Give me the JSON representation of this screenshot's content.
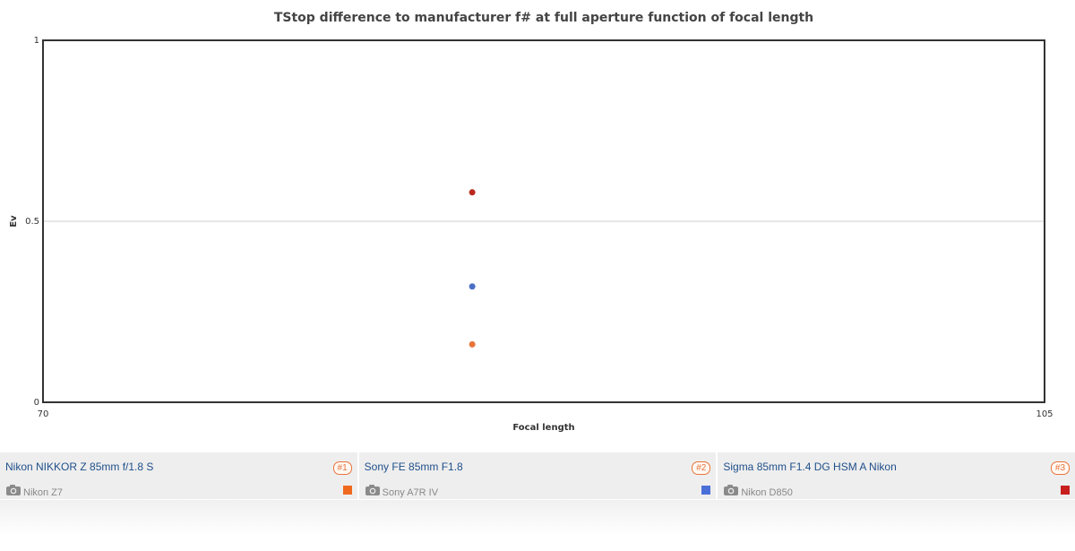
{
  "chart_data": {
    "type": "scatter",
    "title": "TStop difference to manufacturer f# at full aperture function of focal length",
    "xlabel": "Focal length",
    "ylabel": "Ev",
    "xlim": [
      70,
      105
    ],
    "ylim": [
      0,
      1
    ],
    "x_ticks": [
      "70",
      "105"
    ],
    "y_ticks": [
      "0",
      "0.5",
      "1"
    ],
    "grid": "horizontal",
    "series": [
      {
        "x": [
          85
        ],
        "y": [
          0.16
        ],
        "color": "#e8743b"
      },
      {
        "x": [
          85
        ],
        "y": [
          0.32
        ],
        "color": "#4a6fc4"
      },
      {
        "x": [
          85
        ],
        "y": [
          0.58
        ],
        "color": "#b82a1e"
      }
    ]
  },
  "legend": {
    "items": [
      {
        "lens": "Nikon NIKKOR Z 85mm f/1.8 S",
        "rank": "#1",
        "camera": "Nikon Z7",
        "color": "#ef6a1f",
        "icon": "camera-icon"
      },
      {
        "lens": "Sony FE 85mm F1.8",
        "rank": "#2",
        "camera": "Sony A7R IV",
        "color": "#4a6fd8",
        "icon": "camera-icon"
      },
      {
        "lens": "Sigma 85mm F1.4 DG HSM A Nikon",
        "rank": "#3",
        "camera": "Nikon D850",
        "color": "#c81e1e",
        "icon": "camera-icon"
      }
    ]
  }
}
